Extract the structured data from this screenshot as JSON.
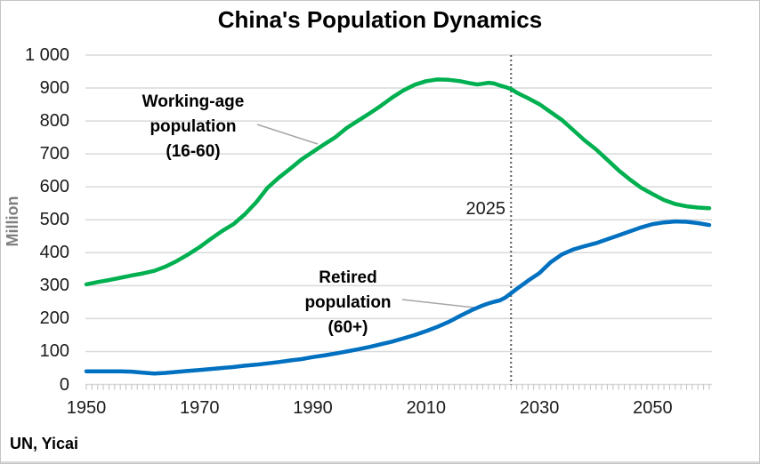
{
  "title": "China's Population Dynamics",
  "source": "UN, Yicai",
  "colors": {
    "gridline": "#D9D9D9",
    "axis_tick": "#BFBFBF",
    "vline": "#595959",
    "leader": "#A6A6A6",
    "text": "#1A1A1A",
    "muted_text": "#7F7F7F",
    "frame_border": "#C4C4C4"
  },
  "chart_data": {
    "type": "line",
    "title": "China's Population Dynamics",
    "xlabel": "",
    "ylabel": "Million",
    "ylim": [
      0,
      1000
    ],
    "xlim": [
      1950,
      2060
    ],
    "grid": "horizontal",
    "legend_position": "none (inline annotations)",
    "y_ticks": [
      {
        "value": 0,
        "label": "0"
      },
      {
        "value": 100,
        "label": "100"
      },
      {
        "value": 200,
        "label": "200"
      },
      {
        "value": 300,
        "label": "300"
      },
      {
        "value": 400,
        "label": "400"
      },
      {
        "value": 500,
        "label": "500"
      },
      {
        "value": 600,
        "label": "600"
      },
      {
        "value": 700,
        "label": "700"
      },
      {
        "value": 800,
        "label": "800"
      },
      {
        "value": 900,
        "label": "900"
      },
      {
        "value": 1000,
        "label": "1 000"
      }
    ],
    "x_ticks": [
      {
        "value": 1950,
        "label": "1950"
      },
      {
        "value": 1970,
        "label": "1970"
      },
      {
        "value": 1990,
        "label": "1990"
      },
      {
        "value": 2010,
        "label": "2010"
      },
      {
        "value": 2030,
        "label": "2030"
      },
      {
        "value": 2050,
        "label": "2050"
      }
    ],
    "minor_tick_step_years": 1,
    "vline": {
      "x": 2025,
      "label": "2025",
      "style": "dotted",
      "color": "#595959"
    },
    "annotations": [
      {
        "target_series": "Working-age population (16-60)",
        "text_lines": [
          "Working-age",
          "population",
          "(16-60)"
        ]
      },
      {
        "target_series": "Retired population (60+)",
        "text_lines": [
          "Retired",
          "population",
          "(60+)"
        ]
      }
    ],
    "series": [
      {
        "name": "Working-age population (16-60)",
        "color": "#00B050",
        "points": [
          [
            1950,
            304
          ],
          [
            1952,
            311
          ],
          [
            1954,
            317
          ],
          [
            1956,
            324
          ],
          [
            1958,
            331
          ],
          [
            1960,
            337
          ],
          [
            1962,
            345
          ],
          [
            1964,
            358
          ],
          [
            1966,
            375
          ],
          [
            1968,
            395
          ],
          [
            1970,
            417
          ],
          [
            1972,
            442
          ],
          [
            1974,
            466
          ],
          [
            1976,
            487
          ],
          [
            1978,
            517
          ],
          [
            1980,
            553
          ],
          [
            1982,
            597
          ],
          [
            1984,
            628
          ],
          [
            1986,
            655
          ],
          [
            1988,
            683
          ],
          [
            1990,
            706
          ],
          [
            1992,
            729
          ],
          [
            1994,
            751
          ],
          [
            1996,
            779
          ],
          [
            1998,
            801
          ],
          [
            2000,
            823
          ],
          [
            2002,
            846
          ],
          [
            2004,
            871
          ],
          [
            2006,
            893
          ],
          [
            2008,
            910
          ],
          [
            2010,
            921
          ],
          [
            2012,
            926
          ],
          [
            2014,
            925
          ],
          [
            2016,
            921
          ],
          [
            2018,
            914
          ],
          [
            2019,
            911
          ],
          [
            2020,
            913
          ],
          [
            2021,
            916
          ],
          [
            2022,
            914
          ],
          [
            2023,
            908
          ],
          [
            2024,
            903
          ],
          [
            2025,
            897
          ],
          [
            2026,
            886
          ],
          [
            2028,
            869
          ],
          [
            2030,
            851
          ],
          [
            2032,
            827
          ],
          [
            2034,
            803
          ],
          [
            2036,
            772
          ],
          [
            2038,
            741
          ],
          [
            2040,
            714
          ],
          [
            2042,
            682
          ],
          [
            2044,
            650
          ],
          [
            2046,
            622
          ],
          [
            2048,
            597
          ],
          [
            2050,
            578
          ],
          [
            2052,
            560
          ],
          [
            2054,
            548
          ],
          [
            2056,
            541
          ],
          [
            2058,
            537
          ],
          [
            2060,
            535
          ]
        ]
      },
      {
        "name": "Retired population (60+)",
        "color": "#0070C0",
        "points": [
          [
            1950,
            40
          ],
          [
            1952,
            40
          ],
          [
            1954,
            40
          ],
          [
            1956,
            40
          ],
          [
            1958,
            39
          ],
          [
            1960,
            36
          ],
          [
            1962,
            33
          ],
          [
            1964,
            35
          ],
          [
            1966,
            38
          ],
          [
            1968,
            41
          ],
          [
            1970,
            44
          ],
          [
            1972,
            47
          ],
          [
            1974,
            50
          ],
          [
            1976,
            53
          ],
          [
            1978,
            57
          ],
          [
            1980,
            60
          ],
          [
            1982,
            64
          ],
          [
            1984,
            68
          ],
          [
            1986,
            73
          ],
          [
            1988,
            77
          ],
          [
            1990,
            83
          ],
          [
            1992,
            88
          ],
          [
            1994,
            94
          ],
          [
            1996,
            100
          ],
          [
            1998,
            107
          ],
          [
            2000,
            114
          ],
          [
            2002,
            122
          ],
          [
            2004,
            130
          ],
          [
            2006,
            140
          ],
          [
            2008,
            150
          ],
          [
            2010,
            162
          ],
          [
            2012,
            175
          ],
          [
            2014,
            190
          ],
          [
            2016,
            208
          ],
          [
            2018,
            225
          ],
          [
            2020,
            240
          ],
          [
            2021,
            246
          ],
          [
            2022,
            251
          ],
          [
            2023,
            255
          ],
          [
            2024,
            264
          ],
          [
            2025,
            277
          ],
          [
            2026,
            290
          ],
          [
            2028,
            315
          ],
          [
            2030,
            338
          ],
          [
            2032,
            371
          ],
          [
            2034,
            395
          ],
          [
            2036,
            410
          ],
          [
            2038,
            420
          ],
          [
            2040,
            429
          ],
          [
            2042,
            441
          ],
          [
            2044,
            453
          ],
          [
            2046,
            465
          ],
          [
            2048,
            477
          ],
          [
            2050,
            487
          ],
          [
            2052,
            492
          ],
          [
            2054,
            495
          ],
          [
            2056,
            494
          ],
          [
            2058,
            490
          ],
          [
            2060,
            484
          ]
        ]
      }
    ]
  }
}
